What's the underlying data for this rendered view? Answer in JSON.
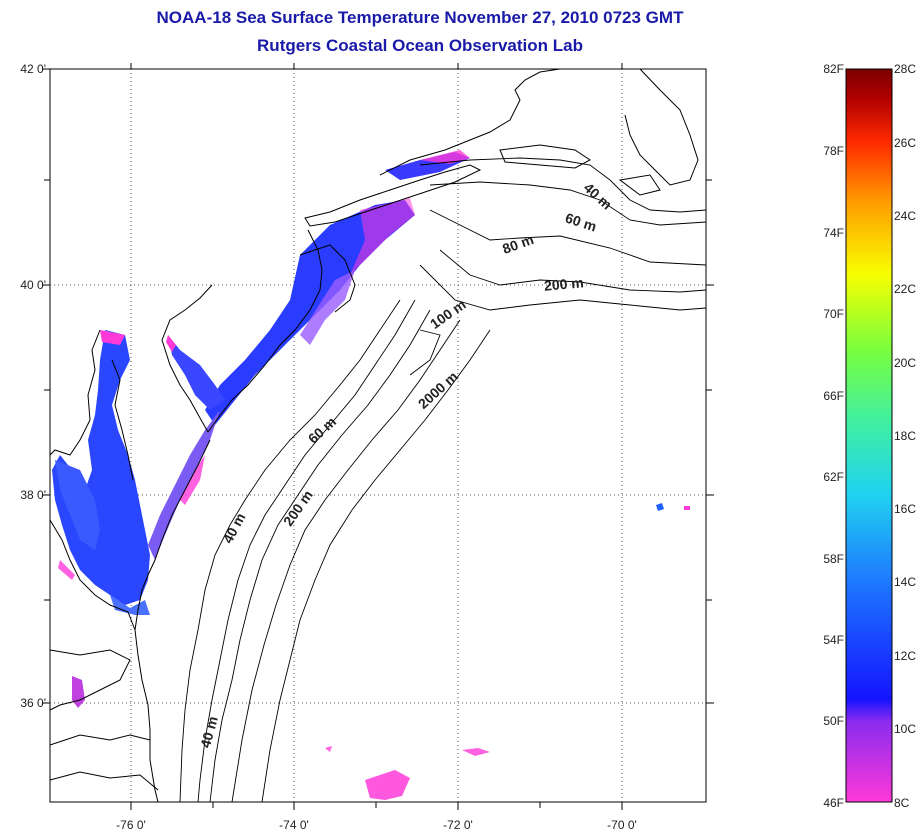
{
  "title": {
    "line1": "NOAA-18 Sea Surface Temperature November 27, 2010 0723 GMT",
    "line2": "Rutgers Coastal Ocean Observation Lab"
  },
  "latitude_labels": [
    "42 0'",
    "40 0'",
    "38 0'",
    "36 0'"
  ],
  "longitude_labels": [
    "-76 0'",
    "-74 0'",
    "-72 0'",
    "-70 0'"
  ],
  "depth_contour_labels": [
    "40 m",
    "60 m",
    "80 m",
    "200 m",
    "100 m",
    "2000 m",
    "60 m",
    "40 m",
    "200 m",
    "40 m"
  ],
  "colorbar": {
    "fahrenheit_labels": [
      "82F",
      "78F",
      "74F",
      "70F",
      "66F",
      "62F",
      "58F",
      "54F",
      "50F",
      "46F"
    ],
    "celsius_labels": [
      "28C",
      "26C",
      "24C",
      "22C",
      "20C",
      "18C",
      "16C",
      "14C",
      "12C",
      "10C",
      "8C"
    ],
    "colors": [
      "#ff39d8",
      "#8a2bf0",
      "#1414ff",
      "#1e78ff",
      "#20d2f0",
      "#40f0a0",
      "#7cff3c",
      "#f8ff00",
      "#ff9a00",
      "#ff2a00",
      "#b00000",
      "#7a0000"
    ]
  },
  "map": {
    "coastline_color": "#000000",
    "grid_style": "dotted",
    "sst_colors": {
      "cool": "#1e3cff",
      "cold_edge": "#ff39d8",
      "mixed": "#7a5cf2"
    }
  }
}
